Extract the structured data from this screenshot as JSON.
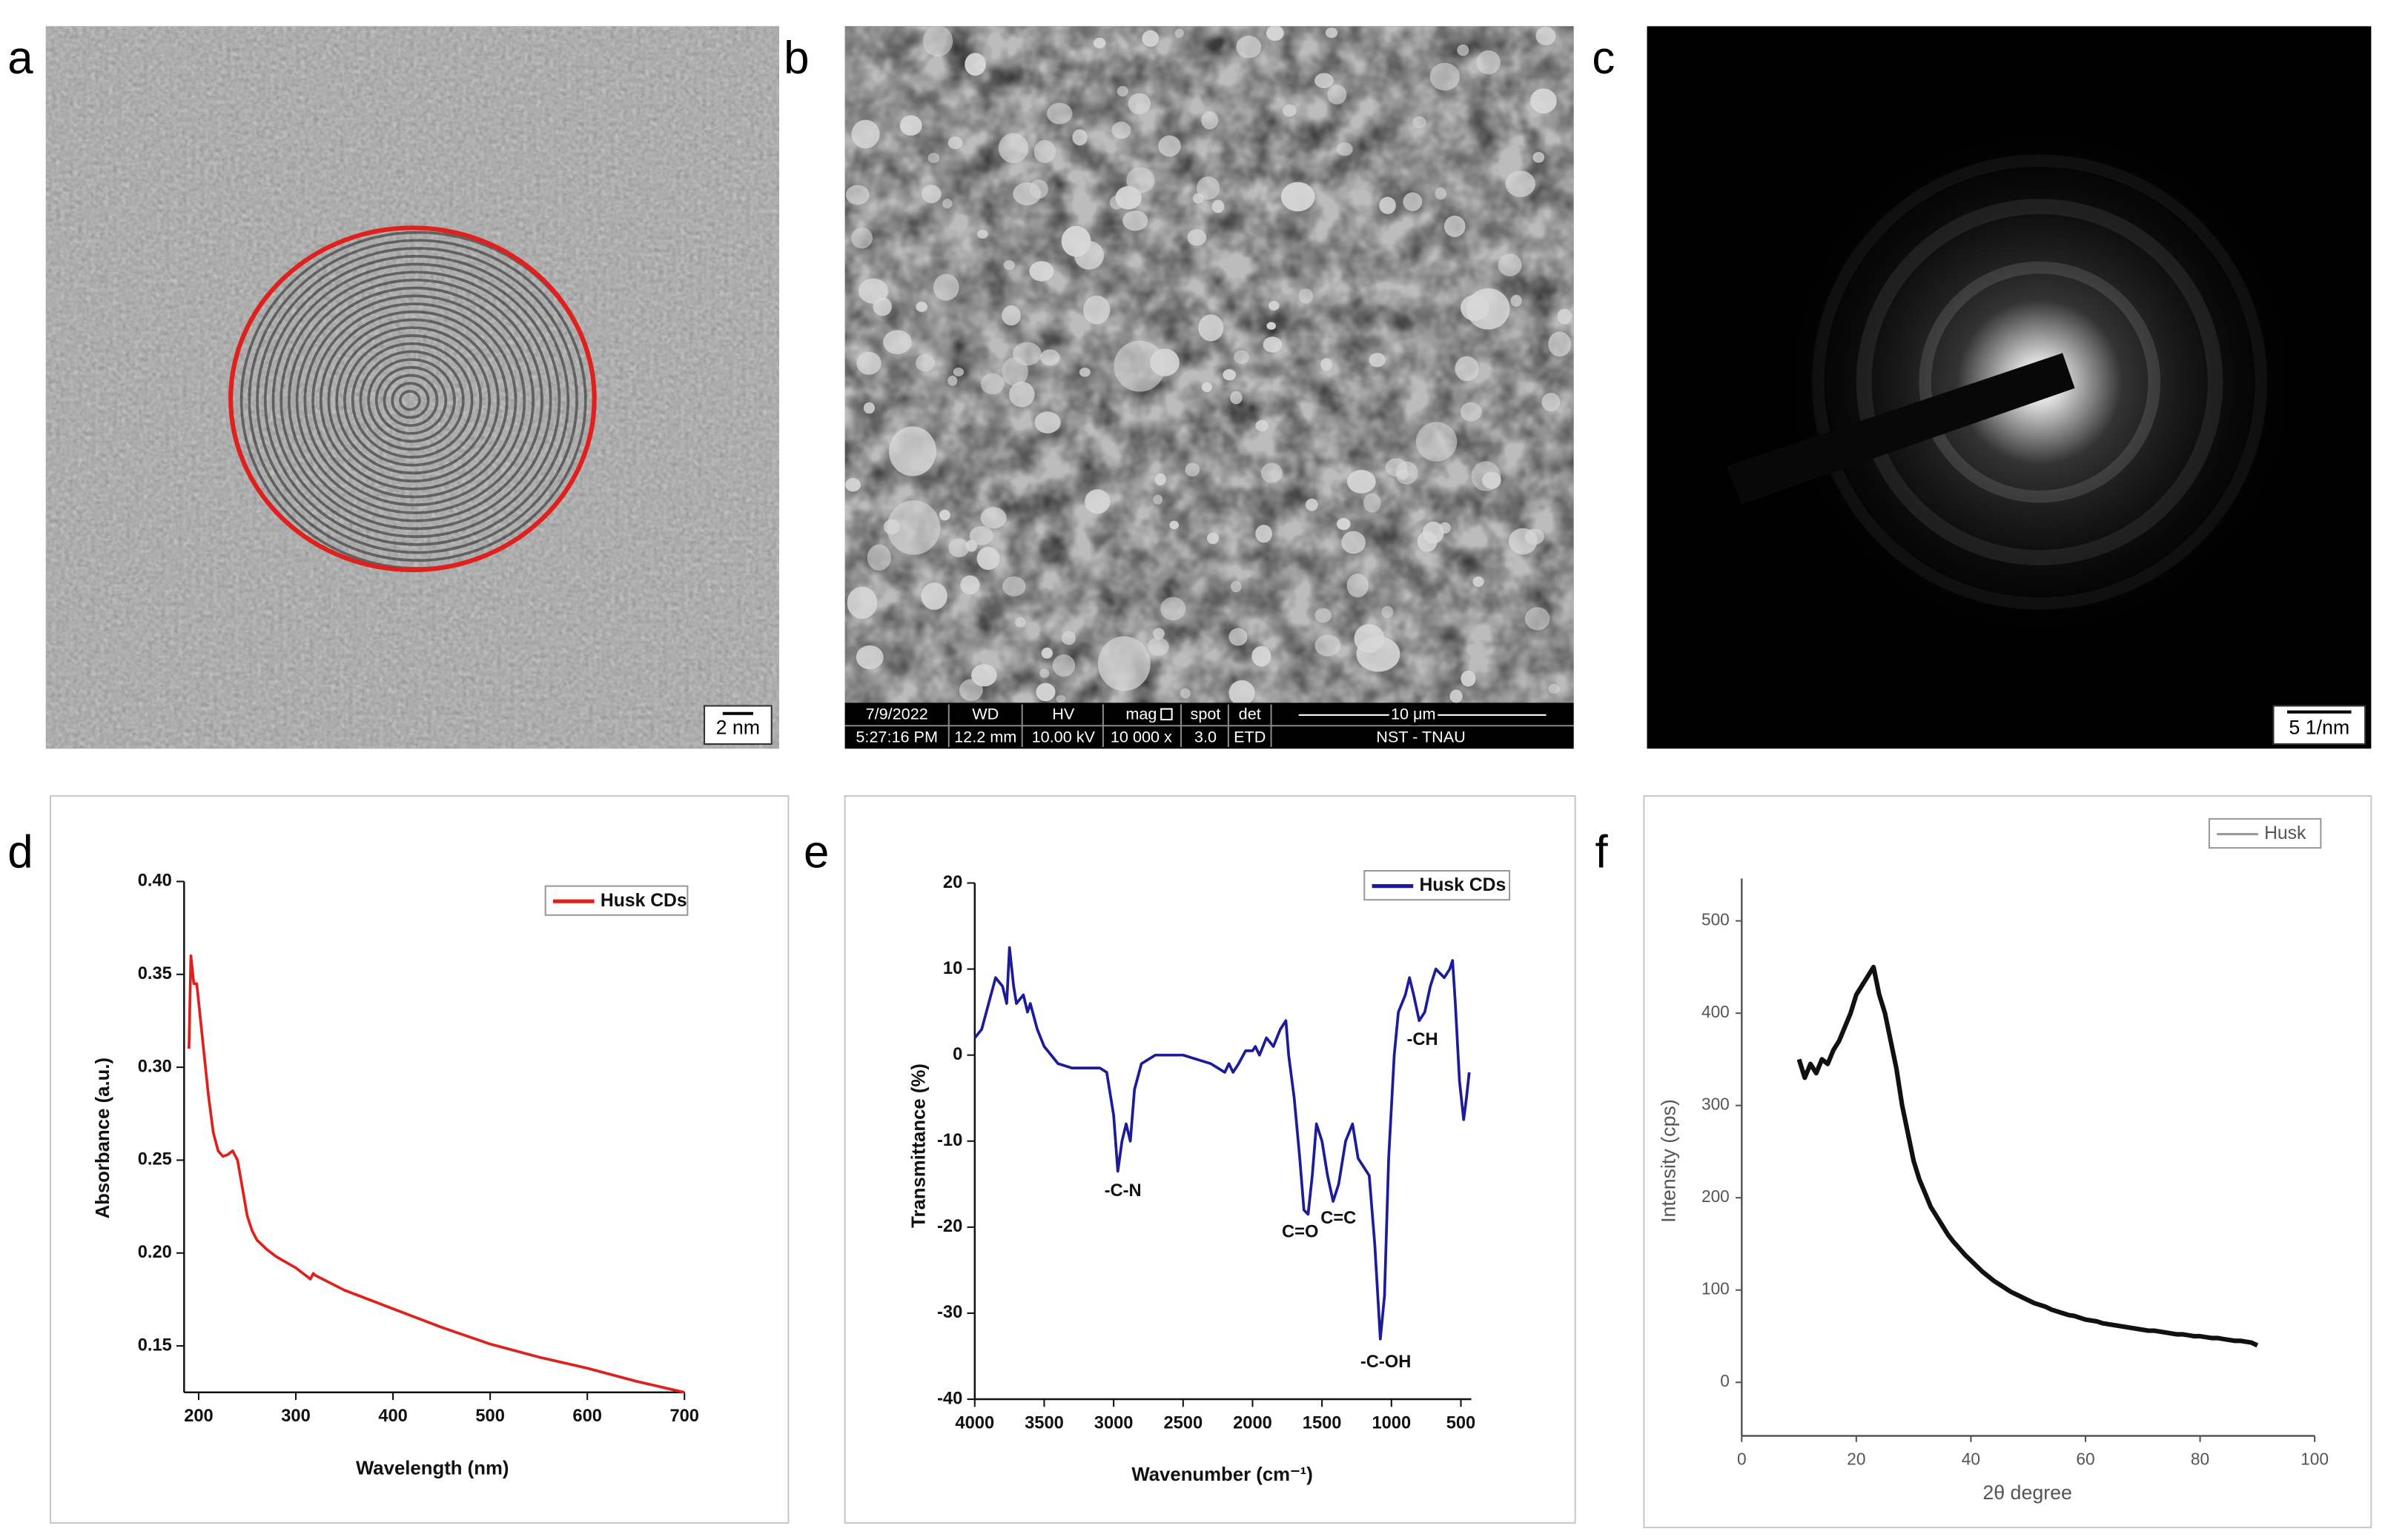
{
  "panel_labels": [
    "a",
    "b",
    "c",
    "d",
    "e",
    "f"
  ],
  "micrographs": {
    "a": {
      "scale_bar": "2 nm"
    },
    "b": {
      "date": "7/9/2022",
      "time": "5:27:16 PM",
      "headers": [
        "WD",
        "HV",
        "mag",
        "spot",
        "det"
      ],
      "values": [
        "12.2 mm",
        "10.00 kV",
        "10 000 x",
        "3.0",
        "ETD"
      ],
      "scale_bar": "10 μm",
      "lab": "NST - TNAU"
    },
    "c": {
      "scale_bar": "5 1/nm"
    }
  },
  "chart_data": [
    {
      "type": "line",
      "x_label": "Wavelength (nm)",
      "y_label": "Absorbance (a.u.)",
      "legend": "upper right",
      "xlim": [
        185,
        700
      ],
      "ylim": [
        0.125,
        0.4
      ],
      "xticks": [
        200,
        300,
        400,
        500,
        600,
        700
      ],
      "yticks": [
        0.15,
        {
          "value": 0.2,
          "label": "0.20"
        },
        0.25,
        {
          "value": 0.3,
          "label": "0.30"
        },
        0.35,
        {
          "value": 0.4,
          "label": "0.40"
        }
      ],
      "x": [
        190,
        192,
        195,
        198,
        200,
        205,
        210,
        215,
        220,
        225,
        230,
        235,
        240,
        245,
        250,
        255,
        260,
        270,
        280,
        300,
        315,
        318,
        320,
        350,
        400,
        450,
        500,
        550,
        600,
        650,
        700
      ],
      "series": [
        {
          "name": "Husk CDs",
          "color": "#e0201c",
          "values": [
            0.31,
            0.36,
            0.345,
            0.345,
            0.335,
            0.31,
            0.285,
            0.265,
            0.255,
            0.252,
            0.253,
            0.255,
            0.25,
            0.235,
            0.22,
            0.212,
            0.207,
            0.202,
            0.198,
            0.192,
            0.186,
            0.189,
            0.188,
            0.18,
            0.17,
            0.16,
            0.151,
            0.144,
            0.138,
            0.131,
            0.125
          ]
        }
      ]
    },
    {
      "type": "line",
      "x_label": "Wavenumber (cm⁻¹)",
      "y_label": "Transmittance (%)",
      "legend": "upper right",
      "xlim": [
        4000,
        425
      ],
      "ylim": [
        -40,
        20
      ],
      "xticks": [
        4000,
        3500,
        3000,
        2500,
        2000,
        1500,
        1000,
        500
      ],
      "yticks": [
        20,
        10,
        0,
        -10,
        -20,
        -30,
        -40
      ],
      "annotations": [
        "-C-N",
        "C=O",
        "C=C",
        "-C-OH",
        "-CH"
      ],
      "x": [
        4000,
        3950,
        3900,
        3850,
        3800,
        3770,
        3750,
        3720,
        3700,
        3650,
        3620,
        3600,
        3550,
        3500,
        3400,
        3300,
        3100,
        3050,
        3000,
        2970,
        2940,
        2910,
        2880,
        2850,
        2800,
        2700,
        2500,
        2400,
        2300,
        2200,
        2170,
        2140,
        2100,
        2050,
        2000,
        1980,
        1950,
        1900,
        1850,
        1800,
        1760,
        1740,
        1700,
        1660,
        1630,
        1600,
        1570,
        1540,
        1500,
        1460,
        1420,
        1380,
        1330,
        1280,
        1240,
        1200,
        1160,
        1120,
        1080,
        1050,
        1020,
        980,
        950,
        900,
        870,
        840,
        800,
        760,
        720,
        680,
        620,
        580,
        560,
        540,
        510,
        480,
        460,
        440
      ],
      "series": [
        {
          "name": "Husk CDs",
          "color": "#1c1c9a",
          "values": [
            2,
            3,
            6,
            9,
            8,
            6,
            12.5,
            8,
            6,
            7,
            5,
            6,
            3,
            1,
            -1,
            -1.5,
            -1.5,
            -2,
            -7,
            -13.5,
            -10,
            -8,
            -10,
            -4,
            -1,
            0,
            0,
            -0.5,
            -1,
            -2,
            -1,
            -2,
            -1,
            0.5,
            0.5,
            1,
            0,
            2,
            1,
            3,
            4,
            0,
            -5,
            -12,
            -18,
            -18.5,
            -14,
            -8,
            -10,
            -14,
            -17,
            -15,
            -10,
            -8,
            -12,
            -13,
            -14,
            -22,
            -33,
            -28,
            -12,
            0,
            5,
            7,
            9,
            7,
            4,
            5,
            8,
            10,
            9,
            10,
            11,
            6,
            -3,
            -7.5,
            -5,
            -2
          ]
        }
      ]
    },
    {
      "type": "line",
      "x_label": "2θ degree",
      "y_label": "Intensity (cps)",
      "legend": "upper right",
      "xlim": [
        0,
        100
      ],
      "ylim": [
        -58,
        546
      ],
      "xticks": [
        0,
        20,
        40,
        60,
        80,
        100
      ],
      "yticks": [
        0,
        100,
        200,
        300,
        400,
        500
      ],
      "x": [
        10,
        11,
        12,
        13,
        14,
        15,
        16,
        17,
        18,
        19,
        20,
        21,
        22,
        23,
        24,
        25,
        26,
        27,
        28,
        29,
        30,
        31,
        32,
        33,
        34,
        35,
        36,
        37,
        38,
        39,
        40,
        41,
        42,
        43,
        44,
        45,
        46,
        47,
        48,
        49,
        50,
        51,
        52,
        53,
        54,
        55,
        56,
        57,
        58,
        59,
        60,
        61,
        62,
        63,
        64,
        65,
        66,
        67,
        68,
        69,
        70,
        71,
        72,
        73,
        74,
        75,
        76,
        77,
        78,
        79,
        80,
        81,
        82,
        83,
        84,
        85,
        86,
        87,
        88,
        89,
        90
      ],
      "series": [
        {
          "name": "Husk",
          "color": "#111111",
          "values": [
            350,
            330,
            345,
            335,
            350,
            345,
            360,
            370,
            385,
            400,
            420,
            430,
            440,
            450,
            420,
            400,
            370,
            340,
            300,
            270,
            240,
            220,
            205,
            190,
            180,
            170,
            160,
            152,
            145,
            138,
            132,
            126,
            120,
            115,
            110,
            106,
            102,
            98,
            95,
            92,
            89,
            86,
            84,
            82,
            79,
            77,
            75,
            73,
            72,
            70,
            68,
            67,
            66,
            64,
            63,
            62,
            61,
            60,
            59,
            58,
            57,
            56,
            56,
            55,
            54,
            53,
            52,
            52,
            51,
            50,
            50,
            49,
            48,
            48,
            47,
            46,
            45,
            45,
            44,
            43,
            40
          ]
        }
      ]
    }
  ]
}
